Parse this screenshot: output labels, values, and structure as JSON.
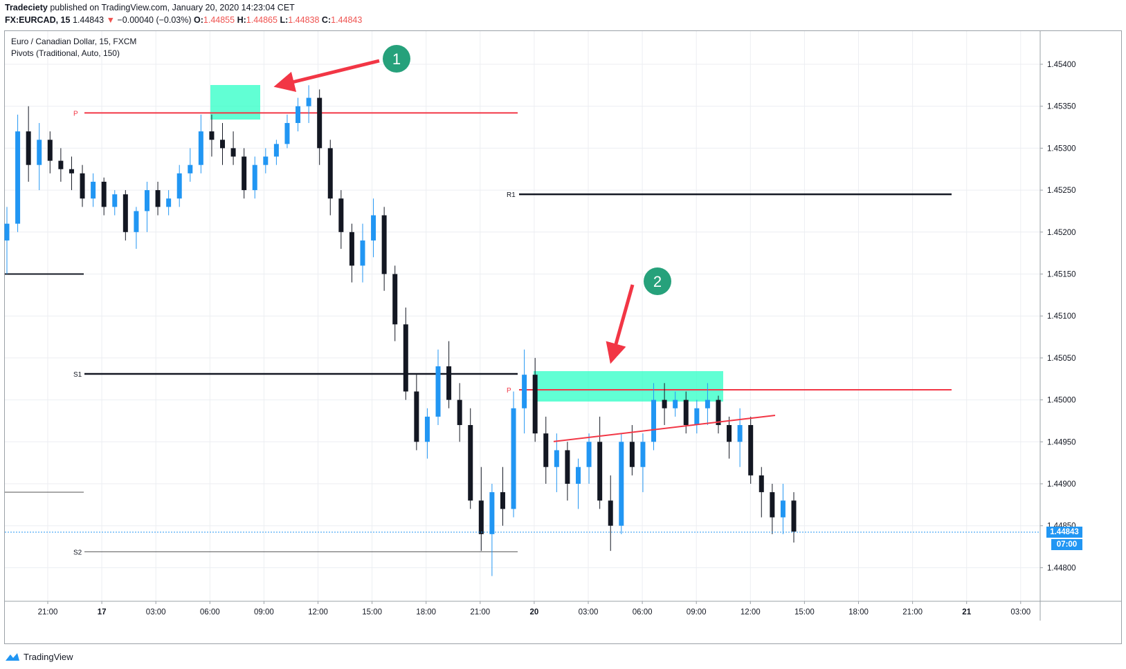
{
  "header": {
    "author": "Tradeciety",
    "published_text": "published on TradingView.com, January 20, 2020 14:23:04 CET",
    "symbol": "FX:EURCAD, 15",
    "last": "1.44843",
    "change": "−0.00040 (−0.03%)",
    "o_label": "O:",
    "o_value": "1.44855",
    "h_label": "H:",
    "h_value": "1.44865",
    "l_label": "L:",
    "l_value": "1.44838",
    "c_label": "C:",
    "c_value": "1.44843"
  },
  "legend": {
    "series_title": "Euro / Canadian Dollar, 15, FXCM",
    "indicator": "Pivots (Traditional, Auto, 150)"
  },
  "price_axis": {
    "ticks": [
      "1.45400",
      "1.45350",
      "1.45300",
      "1.45250",
      "1.45200",
      "1.45150",
      "1.45100",
      "1.45050",
      "1.45000",
      "1.44950",
      "1.44900",
      "1.44850",
      "1.44800"
    ],
    "last_price_tag": "1.44843",
    "countdown_tag": "07:00"
  },
  "time_axis": {
    "ticks": [
      "21:00",
      "17",
      "03:00",
      "06:00",
      "09:00",
      "12:00",
      "15:00",
      "18:00",
      "21:00",
      "20",
      "03:00",
      "06:00",
      "09:00",
      "12:00",
      "15:00",
      "18:00",
      "21:00",
      "21",
      "03:00"
    ],
    "bold_ticks": [
      "17",
      "20",
      "21"
    ]
  },
  "pivot_labels": {
    "p1": "P",
    "s1": "S1",
    "s2": "S2",
    "r1": "R1",
    "p2": "P"
  },
  "annotations": {
    "marker1": "1",
    "marker2": "2"
  },
  "colors": {
    "up": "#2196f3",
    "down": "#131722",
    "pivot": "#f23645",
    "support_resistance": "#131722",
    "highlight": "#2cffc6",
    "arrow": "#f23645",
    "marker": "#26a17b",
    "grid": "#eceef2"
  },
  "footer": {
    "brand": "TradingView"
  },
  "chart_data": {
    "type": "candlestick",
    "y_range": [
      1.44765,
      1.45435
    ],
    "pivots_day1": {
      "P": 1.45342,
      "S1": 1.45031,
      "S2": 1.44819
    },
    "pivots_day2": {
      "P": 1.45012,
      "R1": 1.45245
    },
    "prior_levels": [
      1.4515,
      1.4489
    ],
    "trendline": {
      "from": 1.44952,
      "to": 1.44975
    },
    "candles_ohlc": [
      [
        1.4519,
        1.4523,
        1.4515,
        1.4521
      ],
      [
        1.4521,
        1.4534,
        1.452,
        1.4532
      ],
      [
        1.4532,
        1.4535,
        1.4526,
        1.4528
      ],
      [
        1.4528,
        1.4533,
        1.4525,
        1.4531
      ],
      [
        1.4531,
        1.4532,
        1.4527,
        1.45285
      ],
      [
        1.45285,
        1.453,
        1.4526,
        1.45275
      ],
      [
        1.45275,
        1.4529,
        1.4525,
        1.4527
      ],
      [
        1.4527,
        1.4528,
        1.4523,
        1.4524
      ],
      [
        1.4524,
        1.4527,
        1.4523,
        1.4526
      ],
      [
        1.4526,
        1.45265,
        1.4522,
        1.4523
      ],
      [
        1.4523,
        1.4525,
        1.4522,
        1.45245
      ],
      [
        1.45245,
        1.4525,
        1.4519,
        1.452
      ],
      [
        1.452,
        1.4523,
        1.4518,
        1.45225
      ],
      [
        1.45225,
        1.4526,
        1.452,
        1.4525
      ],
      [
        1.4525,
        1.4526,
        1.4522,
        1.4523
      ],
      [
        1.4523,
        1.4525,
        1.4522,
        1.4524
      ],
      [
        1.4524,
        1.4528,
        1.4523,
        1.4527
      ],
      [
        1.4527,
        1.453,
        1.4526,
        1.4528
      ],
      [
        1.4528,
        1.4534,
        1.4527,
        1.4532
      ],
      [
        1.4532,
        1.4534,
        1.4529,
        1.4531
      ],
      [
        1.4531,
        1.4533,
        1.4528,
        1.453
      ],
      [
        1.453,
        1.4532,
        1.4528,
        1.4529
      ],
      [
        1.4529,
        1.453,
        1.4524,
        1.4525
      ],
      [
        1.4525,
        1.4529,
        1.4524,
        1.4528
      ],
      [
        1.4528,
        1.453,
        1.4527,
        1.4529
      ],
      [
        1.4529,
        1.4531,
        1.4528,
        1.45305
      ],
      [
        1.45305,
        1.4534,
        1.453,
        1.4533
      ],
      [
        1.4533,
        1.4536,
        1.4532,
        1.4535
      ],
      [
        1.4535,
        1.45375,
        1.4533,
        1.4536
      ],
      [
        1.4536,
        1.4537,
        1.4528,
        1.453
      ],
      [
        1.453,
        1.4531,
        1.4522,
        1.4524
      ],
      [
        1.4524,
        1.4525,
        1.4518,
        1.452
      ],
      [
        1.452,
        1.4521,
        1.4514,
        1.4516
      ],
      [
        1.4516,
        1.4521,
        1.4514,
        1.4519
      ],
      [
        1.4519,
        1.4524,
        1.4517,
        1.4522
      ],
      [
        1.4522,
        1.4523,
        1.4513,
        1.4515
      ],
      [
        1.4515,
        1.4516,
        1.4507,
        1.4509
      ],
      [
        1.4509,
        1.4511,
        1.45,
        1.4501
      ],
      [
        1.4501,
        1.4503,
        1.4494,
        1.4495
      ],
      [
        1.4495,
        1.4499,
        1.4493,
        1.4498
      ],
      [
        1.4498,
        1.4506,
        1.4497,
        1.4504
      ],
      [
        1.4504,
        1.4507,
        1.4499,
        1.45
      ],
      [
        1.45,
        1.4502,
        1.4495,
        1.4497
      ],
      [
        1.4497,
        1.4499,
        1.4487,
        1.4488
      ],
      [
        1.4488,
        1.4492,
        1.4482,
        1.4484
      ],
      [
        1.4484,
        1.449,
        1.4479,
        1.4489
      ],
      [
        1.4489,
        1.4492,
        1.4485,
        1.4487
      ],
      [
        1.4487,
        1.4501,
        1.4486,
        1.4499
      ],
      [
        1.4499,
        1.4506,
        1.4496,
        1.4503
      ],
      [
        1.4503,
        1.4505,
        1.4495,
        1.4496
      ],
      [
        1.4496,
        1.4498,
        1.449,
        1.4492
      ],
      [
        1.4492,
        1.4496,
        1.4489,
        1.4494
      ],
      [
        1.4494,
        1.4495,
        1.4488,
        1.449
      ],
      [
        1.449,
        1.4493,
        1.4487,
        1.4492
      ],
      [
        1.4492,
        1.4496,
        1.449,
        1.4495
      ],
      [
        1.4495,
        1.4498,
        1.4487,
        1.4488
      ],
      [
        1.4488,
        1.4491,
        1.4482,
        1.4485
      ],
      [
        1.4485,
        1.4496,
        1.4484,
        1.4495
      ],
      [
        1.4495,
        1.4497,
        1.4491,
        1.4492
      ],
      [
        1.4492,
        1.4496,
        1.4489,
        1.4495
      ],
      [
        1.4495,
        1.4502,
        1.4494,
        1.45
      ],
      [
        1.45,
        1.4502,
        1.4497,
        1.4499
      ],
      [
        1.4499,
        1.4501,
        1.4498,
        1.45
      ],
      [
        1.45,
        1.4501,
        1.4496,
        1.4497
      ],
      [
        1.4497,
        1.45,
        1.4496,
        1.4499
      ],
      [
        1.4499,
        1.4502,
        1.4497,
        1.45
      ],
      [
        1.45,
        1.45005,
        1.4496,
        1.4497
      ],
      [
        1.4497,
        1.4498,
        1.4493,
        1.4495
      ],
      [
        1.4495,
        1.4499,
        1.4492,
        1.4497
      ],
      [
        1.4497,
        1.4498,
        1.449,
        1.4491
      ],
      [
        1.4491,
        1.4492,
        1.4486,
        1.4489
      ],
      [
        1.4489,
        1.449,
        1.4484,
        1.4486
      ],
      [
        1.4486,
        1.449,
        1.4484,
        1.4488
      ],
      [
        1.4488,
        1.4489,
        1.4483,
        1.44843
      ]
    ]
  }
}
